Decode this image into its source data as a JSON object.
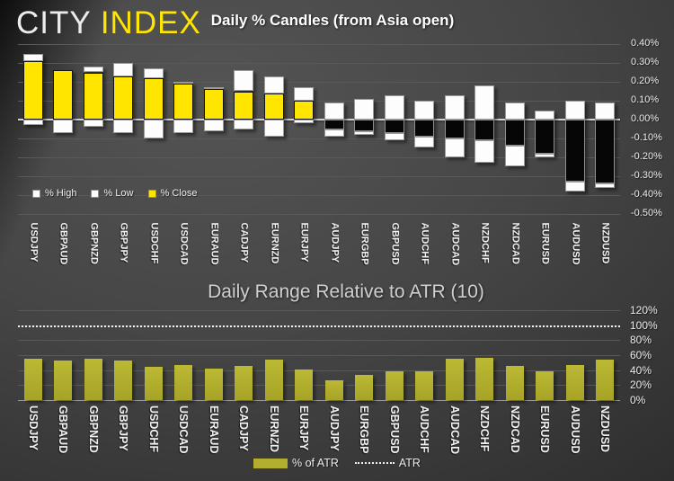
{
  "logo": {
    "city": "CITY",
    "index": "INDEX"
  },
  "colors": {
    "background_light": "#545454",
    "background_dark": "#232323",
    "candle_close_positive": "#ffe500",
    "candle_close_negative": "#060606",
    "candle_high_low": "#ffffff",
    "atr_bar": "#b2af2e",
    "zero_line": "#d2d2d2",
    "gridline": "#595959",
    "title_color": "#ffffff",
    "subtitle_color": "#cfcfcf",
    "logo_city_color": "#ececec",
    "logo_index_color": "#ffe500"
  },
  "chart_data": [
    {
      "type": "bar",
      "subtype": "candle-stack",
      "title": "Daily % Candles (from Asia open)",
      "categories": [
        "USDJPY",
        "GBPAUD",
        "GBPNZD",
        "GBPJPY",
        "USDCHF",
        "USDCAD",
        "EURAUD",
        "CADJPY",
        "EURNZD",
        "EURJPY",
        "AUDJPY",
        "EURGBP",
        "GBPUSD",
        "AUDCHF",
        "AUDCAD",
        "NZDCHF",
        "NZDCAD",
        "EURUSD",
        "AUDUSD",
        "NZDUSD"
      ],
      "series": [
        {
          "name": "% High",
          "values": [
            0.35,
            0.26,
            0.28,
            0.3,
            0.27,
            0.2,
            0.17,
            0.26,
            0.23,
            0.17,
            0.09,
            0.11,
            0.13,
            0.1,
            0.13,
            0.18,
            0.09,
            0.05,
            0.1,
            0.09
          ]
        },
        {
          "name": "% Low",
          "values": [
            -0.03,
            -0.07,
            -0.04,
            -0.07,
            -0.1,
            -0.07,
            -0.06,
            -0.05,
            -0.09,
            -0.02,
            -0.09,
            -0.08,
            -0.11,
            -0.15,
            -0.2,
            -0.23,
            -0.25,
            -0.2,
            -0.38,
            -0.36
          ]
        },
        {
          "name": "% Close",
          "values": [
            0.31,
            0.26,
            0.25,
            0.23,
            0.22,
            0.19,
            0.16,
            0.15,
            0.14,
            0.1,
            -0.05,
            -0.06,
            -0.07,
            -0.09,
            -0.1,
            -0.11,
            -0.14,
            -0.18,
            -0.33,
            -0.34
          ]
        }
      ],
      "ylim": [
        -0.5,
        0.4
      ],
      "ytick_step": 0.1,
      "yticks": [
        "0.40%",
        "0.30%",
        "0.20%",
        "0.10%",
        "0.00%",
        "-0.10%",
        "-0.20%",
        "-0.30%",
        "-0.40%",
        "-0.50%"
      ],
      "grid": true,
      "legend_position": "inside-bottom-left",
      "legend": [
        {
          "label": "% High",
          "swatch": "square",
          "color": "#ffffff"
        },
        {
          "label": "% Low",
          "swatch": "square",
          "color": "#ffffff"
        },
        {
          "label": "% Close",
          "swatch": "square",
          "color": "#ffe500"
        }
      ]
    },
    {
      "type": "bar",
      "title": "Daily Range Relative to ATR (10)",
      "categories": [
        "USDJPY",
        "GBPAUD",
        "GBPNZD",
        "GBPJPY",
        "USDCHF",
        "USDCAD",
        "EURAUD",
        "CADJPY",
        "EURNZD",
        "EURJPY",
        "AUDJPY",
        "EURGBP",
        "GBPUSD",
        "AUDCHF",
        "AUDCAD",
        "NZDCHF",
        "NZDCAD",
        "EURUSD",
        "AUDUSD",
        "NZDUSD"
      ],
      "series": [
        {
          "name": "% of ATR",
          "values": [
            55,
            53,
            55,
            53,
            45,
            47,
            42,
            46,
            54,
            41,
            27,
            34,
            39,
            38,
            55,
            57,
            46,
            38,
            47,
            54
          ]
        }
      ],
      "reference_line": {
        "name": "ATR",
        "value": 100,
        "style": "dotted"
      },
      "ylim": [
        0,
        120
      ],
      "ytick_step": 20,
      "yticks": [
        "120%",
        "100%",
        "80%",
        "60%",
        "40%",
        "20%",
        "0%"
      ],
      "grid": true,
      "legend_position": "bottom-center",
      "legend": [
        {
          "label": "% of ATR",
          "swatch": "bar",
          "color": "#b2af2e"
        },
        {
          "label": "ATR",
          "swatch": "dotted-line",
          "color": "#f2f2f2"
        }
      ]
    }
  ]
}
